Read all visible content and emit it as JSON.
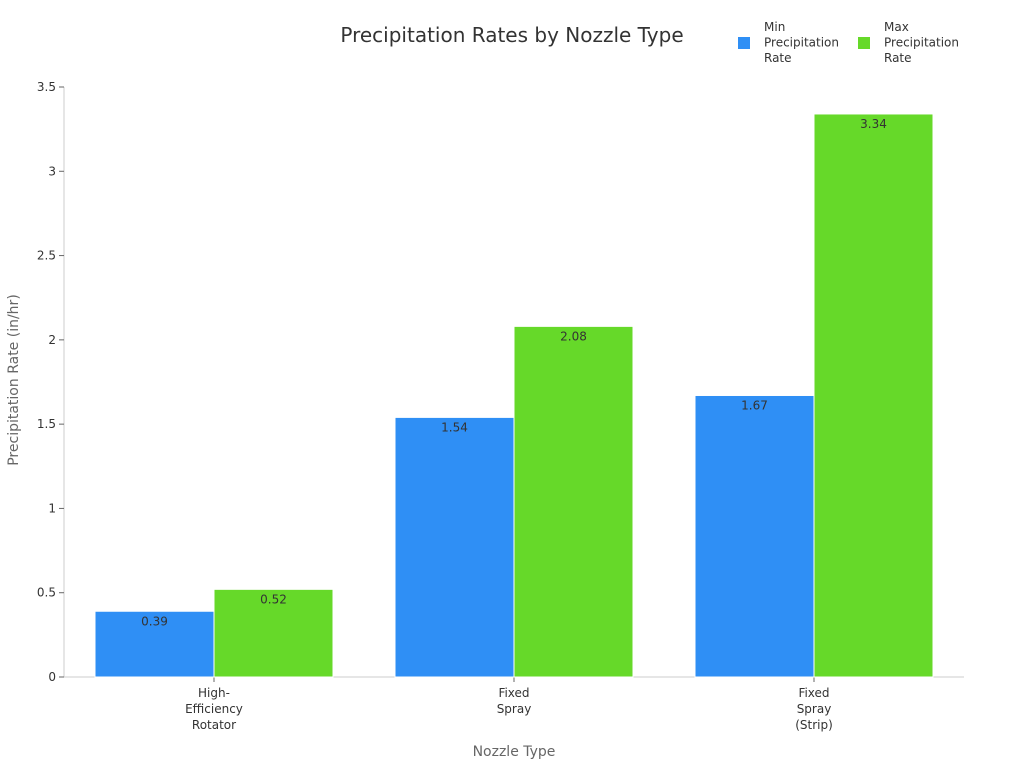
{
  "chart_data": {
    "type": "bar",
    "title": "Precipitation Rates by Nozzle Type",
    "xlabel": "Nozzle Type",
    "ylabel": "Precipitation Rate (in/hr)",
    "categories": [
      [
        "High-",
        "Efficiency",
        "Rotator"
      ],
      [
        "Fixed",
        "Spray"
      ],
      [
        "Fixed",
        "Spray",
        "(Strip)"
      ]
    ],
    "series": [
      {
        "name": [
          "Min",
          "Precipitation",
          "Rate"
        ],
        "values": [
          0.39,
          1.54,
          1.67
        ],
        "color": "#2f8ff5"
      },
      {
        "name": [
          "Max",
          "Precipitation",
          "Rate"
        ],
        "values": [
          0.52,
          2.08,
          3.34
        ],
        "color": "#66d929"
      }
    ],
    "ylim": [
      0,
      3.5
    ],
    "yticks": [
      0,
      0.5,
      1,
      1.5,
      2,
      2.5,
      3,
      3.5
    ],
    "ytick_labels": [
      "0",
      "0.5",
      "1",
      "1.5",
      "2",
      "2.5",
      "3",
      "3.5"
    ],
    "value_labels": [
      [
        "0.39",
        "1.54",
        "1.67"
      ],
      [
        "0.52",
        "2.08",
        "3.34"
      ]
    ],
    "grid": false,
    "legend_position": "top-right"
  }
}
